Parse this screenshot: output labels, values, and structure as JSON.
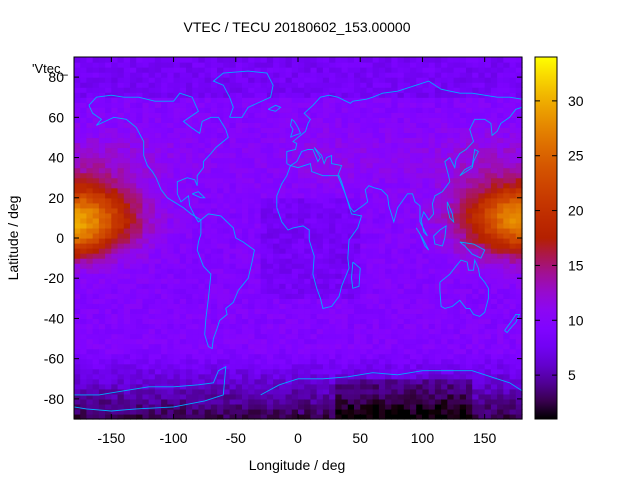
{
  "chart_data": {
    "type": "heatmap",
    "title": "VTEC / TECU 20180602_153.00000",
    "xlabel": "Longitude / deg",
    "ylabel": "Latitude / deg",
    "key_label": "'Vtec_",
    "xlim": [
      -180,
      180
    ],
    "ylim": [
      -90,
      90
    ],
    "xticks": [
      -150,
      -100,
      -50,
      0,
      50,
      100,
      150
    ],
    "yticks": [
      -80,
      -60,
      -40,
      -20,
      0,
      20,
      40,
      60,
      80
    ],
    "colorbar": {
      "range": [
        1,
        34
      ],
      "ticks": [
        5,
        10,
        15,
        20,
        25,
        30
      ],
      "colormap": "gnuplot-pm3d-black-purple-red-orange-yellow"
    },
    "grid": false,
    "overlay": "coastlines",
    "coastline_color": "#00aaff",
    "description_values": {
      "grid_lon_step_deg": 5,
      "grid_lat_step_deg": 2.5
    }
  }
}
